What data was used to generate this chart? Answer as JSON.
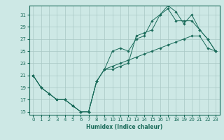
{
  "xlabel": "Humidex (Indice chaleur)",
  "bg_color": "#cde8e5",
  "grid_color": "#a8c8c5",
  "line_color": "#1a6b5a",
  "xlim": [
    -0.5,
    23.5
  ],
  "ylim": [
    14.5,
    32.5
  ],
  "xticks": [
    0,
    1,
    2,
    3,
    4,
    5,
    6,
    7,
    8,
    9,
    10,
    11,
    12,
    13,
    14,
    15,
    16,
    17,
    18,
    19,
    20,
    21,
    22,
    23
  ],
  "yticks": [
    15,
    17,
    19,
    21,
    23,
    25,
    27,
    29,
    31
  ],
  "line1_x": [
    0,
    1,
    2,
    3,
    4,
    5,
    6,
    7,
    8,
    9,
    10,
    11,
    12,
    13,
    14,
    15,
    16,
    17,
    18,
    19,
    20,
    21,
    22,
    23
  ],
  "line1_y": [
    21,
    19,
    18,
    17,
    17,
    16,
    15,
    15,
    20,
    22,
    25,
    25.5,
    25,
    27,
    27.5,
    30,
    31,
    32,
    30,
    30,
    30,
    28.5,
    27,
    25
  ],
  "line2_x": [
    0,
    1,
    2,
    3,
    4,
    5,
    6,
    7,
    8,
    9,
    10,
    11,
    12,
    13,
    14,
    15,
    16,
    17,
    18,
    19,
    20,
    21,
    22,
    23
  ],
  "line2_y": [
    21,
    19,
    18,
    17,
    17,
    16,
    15,
    15,
    20,
    22,
    22,
    22.5,
    23,
    27.5,
    28,
    28.5,
    31,
    32.5,
    31.5,
    29.5,
    31,
    28.5,
    27,
    25
  ],
  "line3_x": [
    0,
    1,
    2,
    3,
    4,
    5,
    6,
    7,
    8,
    9,
    10,
    11,
    12,
    13,
    14,
    15,
    16,
    17,
    18,
    19,
    20,
    21,
    22,
    23
  ],
  "line3_y": [
    21,
    19,
    18,
    17,
    17,
    16,
    15,
    15,
    20,
    22,
    22.5,
    23,
    23.5,
    24,
    24.5,
    25,
    25.5,
    26,
    26.5,
    27,
    27.5,
    27.5,
    25.5,
    25
  ]
}
